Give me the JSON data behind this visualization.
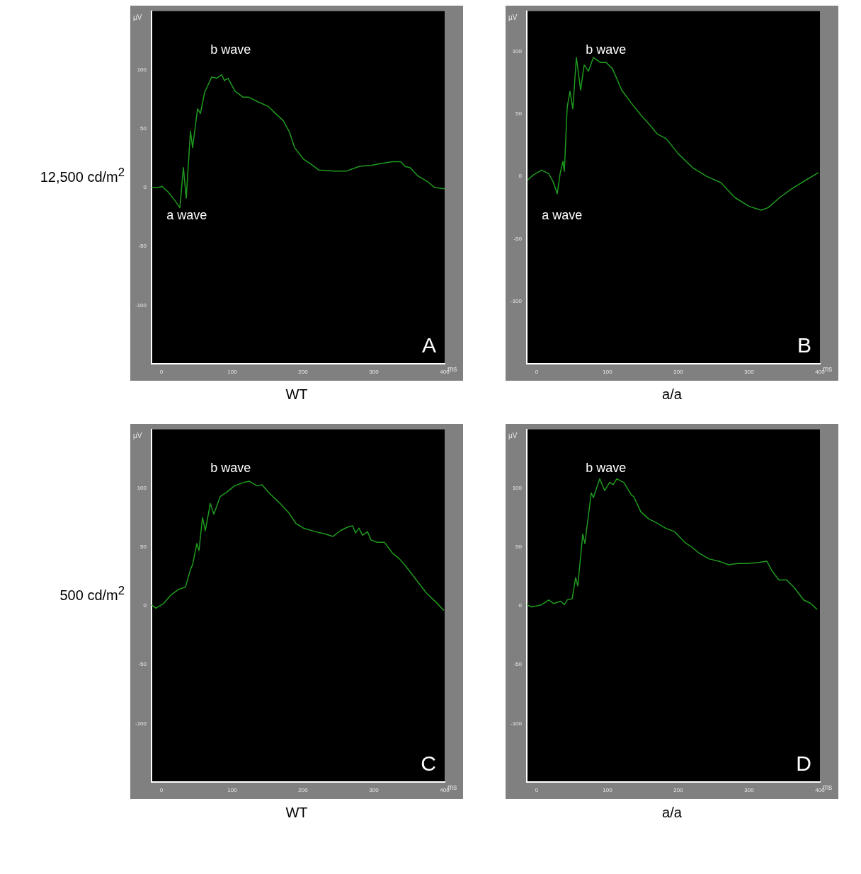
{
  "chart_data": [
    {
      "type": "line",
      "subtitle": "12,500 cd/m$^{2}$",
      "xlabel": "WT",
      "ylabel": "µV",
      "xlim": [
        -14,
        400
      ],
      "ylim": [
        -150,
        150
      ],
      "xticks": [
        0,
        100,
        200,
        300,
        400
      ],
      "yticks": [
        -100,
        -50,
        0,
        50,
        100
      ],
      "annotations": [
        "A",
        "ms",
        "b wave",
        "a wave"
      ],
      "series": [
        {
          "color": "#1f9a1f",
          "x": [
            -14,
            -6,
            1,
            10,
            19,
            26,
            31,
            35,
            41,
            44,
            51,
            55,
            61,
            71,
            78,
            85,
            89,
            94,
            104,
            115,
            123,
            136,
            151,
            161,
            172,
            181,
            188,
            201,
            211,
            222,
            244,
            261,
            279,
            297,
            315,
            326,
            338,
            344,
            351,
            362,
            376,
            386,
            400
          ],
          "values": [
            0,
            0,
            1,
            -4,
            -11,
            -17,
            17,
            -9,
            48,
            34,
            67,
            63,
            81,
            94,
            93,
            96,
            91,
            93,
            82,
            77,
            77,
            73,
            69,
            63,
            57,
            47,
            34,
            24,
            20,
            15,
            14,
            14,
            18,
            19,
            21,
            22,
            22,
            18,
            17,
            10,
            5,
            0,
            -1
          ]
        }
      ]
    },
    {
      "type": "line",
      "xlabel": "a/a",
      "ylabel": "µV",
      "xlim": [
        -14,
        400
      ],
      "ylim": [
        -150,
        132
      ],
      "xticks": [
        0,
        100,
        200,
        300,
        400
      ],
      "yticks": [
        -100,
        -50,
        0,
        50,
        100
      ],
      "annotations": [
        "B",
        "ms",
        "b wave",
        "a wave"
      ],
      "series": [
        {
          "color": "#1f9a1f",
          "x": [
            -13,
            -5,
            7,
            17,
            23,
            29,
            33,
            37,
            39,
            43,
            47,
            51,
            56,
            62,
            67,
            73,
            80,
            90,
            98,
            107,
            120,
            133,
            147,
            160,
            170,
            183,
            200,
            220,
            240,
            260,
            280,
            300,
            317,
            327,
            343,
            360,
            380,
            398
          ],
          "values": [
            -3,
            1,
            5,
            2,
            -4,
            -14,
            2,
            12,
            4,
            55,
            68,
            54,
            95,
            69,
            89,
            84,
            95,
            91,
            91,
            86,
            69,
            59,
            49,
            41,
            34,
            30,
            18,
            7,
            0,
            -5,
            -17,
            -24,
            -27,
            -25,
            -17,
            -10,
            -3,
            3
          ]
        }
      ]
    },
    {
      "type": "line",
      "subtitle": "500 cd/m$^{2}$",
      "xlabel": "WT",
      "ylabel": "µV",
      "xlim": [
        -14,
        400
      ],
      "ylim": [
        -150,
        150
      ],
      "xticks": [
        0,
        100,
        200,
        300,
        400
      ],
      "yticks": [
        -100,
        -50,
        0,
        50,
        100
      ],
      "annotations": [
        "C",
        "ms",
        "b wave"
      ],
      "series": [
        {
          "color": "#1f9a1f",
          "x": [
            -14,
            -8,
            3,
            13,
            24,
            34,
            41,
            44,
            50,
            53,
            58,
            62,
            69,
            74,
            83,
            93,
            103,
            117,
            124,
            135,
            142,
            152,
            166,
            180,
            190,
            201,
            218,
            232,
            242,
            253,
            263,
            270,
            274,
            279,
            284,
            291,
            296,
            305,
            315,
            326,
            336,
            346,
            360,
            374,
            388,
            399
          ],
          "values": [
            1,
            -2,
            2,
            9,
            14,
            16,
            31,
            35,
            53,
            47,
            75,
            64,
            87,
            78,
            93,
            97,
            102,
            105,
            106,
            102,
            103,
            96,
            88,
            79,
            70,
            66,
            63,
            61,
            59,
            64,
            67,
            68,
            62,
            66,
            60,
            63,
            56,
            54,
            54,
            45,
            40,
            33,
            22,
            11,
            3,
            -4
          ]
        }
      ]
    },
    {
      "type": "line",
      "xlabel": "a/a",
      "ylabel": "µV",
      "xlim": [
        -14,
        400
      ],
      "ylim": [
        -150,
        150
      ],
      "xticks": [
        0,
        100,
        200,
        300,
        400
      ],
      "yticks": [
        -100,
        -50,
        0,
        50,
        100
      ],
      "annotations": [
        "D",
        "ms",
        "b wave"
      ],
      "series": [
        {
          "color": "#1f9a1f",
          "x": [
            -14,
            -7,
            7,
            17,
            24,
            34,
            39,
            43,
            50,
            55,
            58,
            65,
            68,
            77,
            80,
            89,
            96,
            103,
            108,
            113,
            123,
            134,
            137,
            147,
            158,
            168,
            182,
            195,
            209,
            219,
            229,
            243,
            257,
            271,
            284,
            298,
            315,
            325,
            332,
            342,
            353,
            363,
            377,
            387,
            396
          ],
          "values": [
            1,
            -1,
            1,
            5,
            2,
            4,
            1,
            5,
            6,
            24,
            17,
            61,
            53,
            96,
            92,
            108,
            98,
            105,
            103,
            108,
            105,
            94,
            93,
            80,
            74,
            71,
            66,
            63,
            54,
            50,
            45,
            40,
            38,
            35,
            36,
            36,
            37,
            38,
            30,
            22,
            22,
            16,
            5,
            2,
            -3
          ]
        }
      ]
    }
  ]
}
